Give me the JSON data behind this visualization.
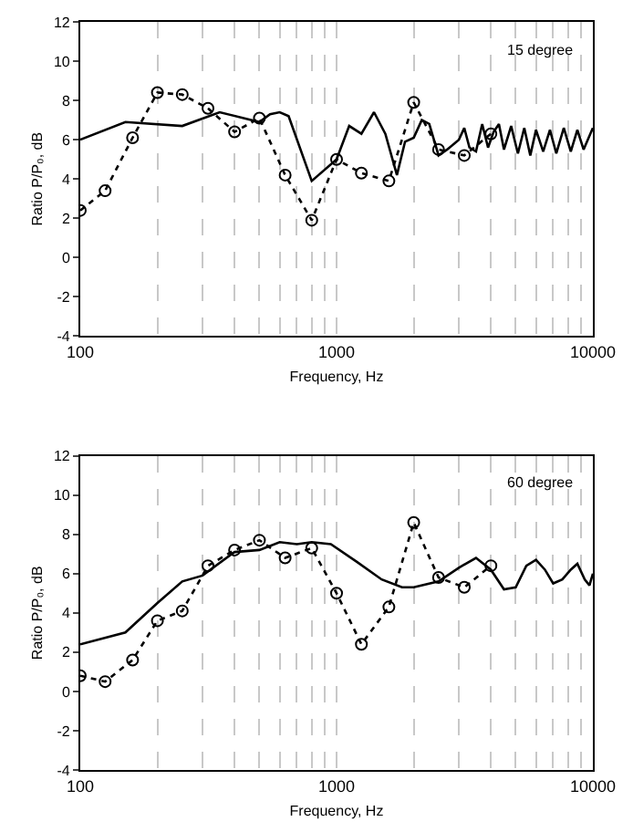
{
  "chart_data": [
    {
      "type": "line",
      "xlabel": "Frequency, Hz",
      "ylabel": "Ratio P/P₀, dB",
      "annotations": [
        "15 degree"
      ],
      "log": "x",
      "xlim": [
        100,
        10000
      ],
      "ylim": [
        -4,
        12
      ],
      "yticks": [
        -4,
        -2,
        0,
        2,
        4,
        6,
        8,
        10,
        12
      ],
      "xticks": [
        100,
        {
          "value": 200,
          "label": null
        },
        {
          "value": 300,
          "label": null
        },
        {
          "value": 400,
          "label": null
        },
        {
          "value": 500,
          "label": null
        },
        {
          "value": 600,
          "label": null
        },
        {
          "value": 700,
          "label": null
        },
        {
          "value": 800,
          "label": null
        },
        {
          "value": 900,
          "label": null
        },
        1000,
        {
          "value": 2000,
          "label": null
        },
        {
          "value": 3000,
          "label": null
        },
        {
          "value": 4000,
          "label": null
        },
        {
          "value": 5000,
          "label": null
        },
        {
          "value": 6000,
          "label": null
        },
        {
          "value": 7000,
          "label": null
        },
        {
          "value": 8000,
          "label": null
        },
        {
          "value": 9000,
          "label": null
        },
        10000
      ],
      "grid": "x",
      "series": [
        {
          "color": "#000000",
          "marker": "none",
          "line_style": "solid",
          "x": [
            100,
            150,
            250,
            350,
            500,
            550,
            600,
            650,
            800,
            1000,
            1120,
            1250,
            1400,
            1550,
            1720,
            1850,
            2000,
            2150,
            2300,
            2500,
            2700,
            3000,
            3150,
            3300,
            3500,
            3700,
            3900,
            4100,
            4300,
            4500,
            4800,
            5100,
            5400,
            5700,
            6000,
            6400,
            6800,
            7200,
            7700,
            8200,
            8700,
            9200,
            10000
          ],
          "values": [
            6.0,
            6.9,
            6.7,
            7.4,
            6.9,
            7.3,
            7.4,
            7.2,
            3.9,
            5.0,
            6.7,
            6.3,
            7.4,
            6.3,
            4.2,
            5.9,
            6.1,
            7.0,
            6.8,
            5.2,
            5.5,
            6.0,
            6.6,
            5.6,
            5.4,
            6.8,
            5.6,
            6.4,
            6.8,
            5.5,
            6.7,
            5.3,
            6.6,
            5.2,
            6.5,
            5.4,
            6.5,
            5.3,
            6.6,
            5.4,
            6.5,
            5.5,
            6.6
          ]
        },
        {
          "color": "#000000",
          "marker": "circle",
          "line_style": "dotted",
          "x": [
            100,
            125,
            160,
            200,
            250,
            315,
            400,
            500,
            630,
            800,
            1000,
            1250,
            1600,
            2000,
            2500,
            3150,
            4000
          ],
          "values": [
            2.4,
            3.4,
            6.1,
            8.4,
            8.3,
            7.6,
            6.4,
            7.1,
            4.2,
            1.9,
            5.0,
            4.3,
            3.9,
            7.9,
            5.5,
            5.2,
            6.3
          ]
        }
      ]
    },
    {
      "type": "line",
      "xlabel": "Frequency, Hz",
      "ylabel": "Ratio P/P₀, dB",
      "annotations": [
        "60 degree"
      ],
      "log": "x",
      "xlim": [
        100,
        10000
      ],
      "ylim": [
        -4,
        12
      ],
      "yticks": [
        -4,
        -2,
        0,
        2,
        4,
        6,
        8,
        10,
        12
      ],
      "xticks": [
        100,
        {
          "value": 200,
          "label": null
        },
        {
          "value": 300,
          "label": null
        },
        {
          "value": 400,
          "label": null
        },
        {
          "value": 500,
          "label": null
        },
        {
          "value": 600,
          "label": null
        },
        {
          "value": 700,
          "label": null
        },
        {
          "value": 800,
          "label": null
        },
        {
          "value": 900,
          "label": null
        },
        1000,
        {
          "value": 2000,
          "label": null
        },
        {
          "value": 3000,
          "label": null
        },
        {
          "value": 4000,
          "label": null
        },
        {
          "value": 5000,
          "label": null
        },
        {
          "value": 6000,
          "label": null
        },
        {
          "value": 7000,
          "label": null
        },
        {
          "value": 8000,
          "label": null
        },
        {
          "value": 9000,
          "label": null
        },
        10000
      ],
      "grid": "x",
      "series": [
        {
          "color": "#000000",
          "marker": "none",
          "line_style": "solid",
          "x": [
            100,
            150,
            200,
            250,
            300,
            400,
            500,
            600,
            700,
            800,
            950,
            1200,
            1500,
            1800,
            2000,
            2500,
            3000,
            3500,
            4000,
            4500,
            5000,
            5500,
            6000,
            6500,
            7000,
            7600,
            8200,
            8700,
            9300,
            9700,
            10000
          ],
          "values": [
            2.4,
            3.0,
            4.5,
            5.6,
            5.9,
            7.1,
            7.2,
            7.6,
            7.5,
            7.6,
            7.5,
            6.6,
            5.7,
            5.3,
            5.3,
            5.6,
            6.3,
            6.8,
            6.2,
            5.2,
            5.3,
            6.4,
            6.7,
            6.2,
            5.5,
            5.7,
            6.2,
            6.5,
            5.7,
            5.4,
            6.0
          ]
        },
        {
          "color": "#000000",
          "marker": "circle",
          "line_style": "dotted",
          "x": [
            100,
            125,
            160,
            200,
            250,
            315,
            400,
            500,
            630,
            800,
            1000,
            1250,
            1600,
            2000,
            2500,
            3150,
            4000
          ],
          "values": [
            0.8,
            0.5,
            1.6,
            3.6,
            4.1,
            6.4,
            7.2,
            7.7,
            6.8,
            7.3,
            5.0,
            2.4,
            4.3,
            8.6,
            5.8,
            5.3,
            6.4
          ]
        }
      ]
    }
  ]
}
